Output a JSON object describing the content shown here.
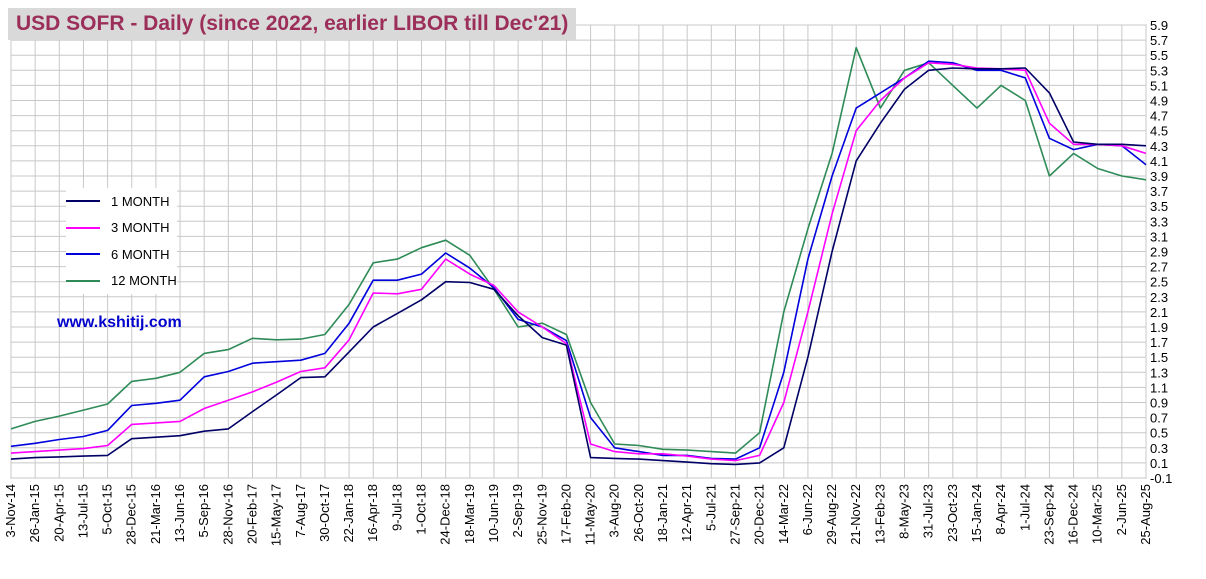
{
  "title": "USD SOFR - Daily (since 2022, earlier LIBOR till Dec'21)",
  "watermark": "www.kshitij.com",
  "chart_data": {
    "type": "line",
    "title": "USD SOFR - Daily (since 2022, earlier LIBOR till Dec'21)",
    "xlabel": "",
    "ylabel": "",
    "ylim": [
      -0.1,
      5.9
    ],
    "y_ticks": [
      5.9,
      5.7,
      5.5,
      5.3,
      5.1,
      4.9,
      4.7,
      4.5,
      4.3,
      4.1,
      3.9,
      3.7,
      3.5,
      3.3,
      3.1,
      2.9,
      2.7,
      2.5,
      2.3,
      2.1,
      1.9,
      1.7,
      1.5,
      1.3,
      1.1,
      0.9,
      0.7,
      0.5,
      0.3,
      0.1,
      -0.1
    ],
    "y_axis_position": "right",
    "grid": true,
    "legend_position": "left",
    "x_tick_labels": [
      "3-Nov-14",
      "26-Jan-15",
      "20-Apr-15",
      "13-Jul-15",
      "5-Oct-15",
      "28-Dec-15",
      "21-Mar-16",
      "13-Jun-16",
      "5-Sep-16",
      "28-Nov-16",
      "20-Feb-17",
      "15-May-17",
      "7-Aug-17",
      "30-Oct-17",
      "22-Jan-18",
      "16-Apr-18",
      "9-Jul-18",
      "1-Oct-18",
      "24-Dec-18",
      "18-Mar-19",
      "10-Jun-19",
      "2-Sep-19",
      "25-Nov-19",
      "17-Feb-20",
      "11-May-20",
      "3-Aug-20",
      "26-Oct-20",
      "18-Jan-21",
      "12-Apr-21",
      "5-Jul-21",
      "27-Sep-21",
      "20-Dec-21",
      "14-Mar-22",
      "6-Jun-22",
      "29-Aug-22",
      "21-Nov-22",
      "13-Feb-23",
      "8-May-23",
      "31-Jul-23",
      "23-Oct-23",
      "15-Jan-24",
      "8-Apr-24",
      "1-Jul-24",
      "23-Sep-24",
      "16-Dec-24",
      "10-Mar-25",
      "2-Jun-25",
      "25-Aug-25"
    ],
    "series": [
      {
        "name": "1 MONTH",
        "color": "#000066",
        "x": [
          "3-Nov-14",
          "26-Jan-15",
          "20-Apr-15",
          "13-Jul-15",
          "5-Oct-15",
          "28-Dec-15",
          "21-Mar-16",
          "13-Jun-16",
          "5-Sep-16",
          "28-Nov-16",
          "20-Feb-17",
          "15-May-17",
          "7-Aug-17",
          "30-Oct-17",
          "22-Jan-18",
          "16-Apr-18",
          "9-Jul-18",
          "1-Oct-18",
          "24-Dec-18",
          "18-Mar-19",
          "10-Jun-19",
          "2-Sep-19",
          "25-Nov-19",
          "17-Feb-20",
          "11-May-20",
          "3-Aug-20",
          "26-Oct-20",
          "18-Jan-21",
          "12-Apr-21",
          "5-Jul-21",
          "27-Sep-21",
          "20-Dec-21",
          "14-Mar-22",
          "6-Jun-22",
          "29-Aug-22",
          "21-Nov-22",
          "13-Feb-23",
          "8-May-23",
          "31-Jul-23",
          "23-Oct-23",
          "15-Jan-24",
          "8-Apr-24",
          "1-Jul-24",
          "23-Sep-24",
          "16-Dec-24",
          "10-Mar-25",
          "2-Jun-25",
          "25-Aug-25"
        ],
        "values": [
          0.15,
          0.17,
          0.18,
          0.19,
          0.2,
          0.42,
          0.44,
          0.46,
          0.52,
          0.55,
          0.78,
          1.0,
          1.23,
          1.24,
          1.57,
          1.9,
          2.08,
          2.26,
          2.5,
          2.49,
          2.4,
          2.05,
          1.76,
          1.66,
          0.17,
          0.16,
          0.15,
          0.13,
          0.11,
          0.09,
          0.08,
          0.1,
          0.3,
          1.5,
          2.9,
          4.1,
          4.6,
          5.05,
          5.3,
          5.33,
          5.32,
          5.32,
          5.33,
          5.0,
          4.35,
          4.32,
          4.32,
          4.3
        ]
      },
      {
        "name": "3 MONTH",
        "color": "#ff00ff",
        "x": [
          "3-Nov-14",
          "26-Jan-15",
          "20-Apr-15",
          "13-Jul-15",
          "5-Oct-15",
          "28-Dec-15",
          "21-Mar-16",
          "13-Jun-16",
          "5-Sep-16",
          "28-Nov-16",
          "20-Feb-17",
          "15-May-17",
          "7-Aug-17",
          "30-Oct-17",
          "22-Jan-18",
          "16-Apr-18",
          "9-Jul-18",
          "1-Oct-18",
          "24-Dec-18",
          "18-Mar-19",
          "10-Jun-19",
          "2-Sep-19",
          "25-Nov-19",
          "17-Feb-20",
          "11-May-20",
          "3-Aug-20",
          "26-Oct-20",
          "18-Jan-21",
          "12-Apr-21",
          "5-Jul-21",
          "27-Sep-21",
          "20-Dec-21",
          "14-Mar-22",
          "6-Jun-22",
          "29-Aug-22",
          "21-Nov-22",
          "13-Feb-23",
          "8-May-23",
          "31-Jul-23",
          "23-Oct-23",
          "15-Jan-24",
          "8-Apr-24",
          "1-Jul-24",
          "23-Sep-24",
          "16-Dec-24",
          "10-Mar-25",
          "2-Jun-25",
          "25-Aug-25"
        ],
        "values": [
          0.23,
          0.25,
          0.27,
          0.29,
          0.33,
          0.61,
          0.63,
          0.65,
          0.82,
          0.93,
          1.04,
          1.17,
          1.31,
          1.36,
          1.73,
          2.35,
          2.34,
          2.4,
          2.8,
          2.6,
          2.45,
          2.1,
          1.9,
          1.68,
          0.35,
          0.25,
          0.22,
          0.22,
          0.19,
          0.15,
          0.13,
          0.2,
          0.9,
          2.1,
          3.4,
          4.5,
          4.9,
          5.2,
          5.4,
          5.38,
          5.33,
          5.32,
          5.3,
          4.6,
          4.32,
          4.32,
          4.3,
          4.2
        ]
      },
      {
        "name": "6 MONTH",
        "color": "#0000dd",
        "x": [
          "3-Nov-14",
          "26-Jan-15",
          "20-Apr-15",
          "13-Jul-15",
          "5-Oct-15",
          "28-Dec-15",
          "21-Mar-16",
          "13-Jun-16",
          "5-Sep-16",
          "28-Nov-16",
          "20-Feb-17",
          "15-May-17",
          "7-Aug-17",
          "30-Oct-17",
          "22-Jan-18",
          "16-Apr-18",
          "9-Jul-18",
          "1-Oct-18",
          "24-Dec-18",
          "18-Mar-19",
          "10-Jun-19",
          "2-Sep-19",
          "25-Nov-19",
          "17-Feb-20",
          "11-May-20",
          "3-Aug-20",
          "26-Oct-20",
          "18-Jan-21",
          "12-Apr-21",
          "5-Jul-21",
          "27-Sep-21",
          "20-Dec-21",
          "14-Mar-22",
          "6-Jun-22",
          "29-Aug-22",
          "21-Nov-22",
          "13-Feb-23",
          "8-May-23",
          "31-Jul-23",
          "23-Oct-23",
          "15-Jan-24",
          "8-Apr-24",
          "1-Jul-24",
          "23-Sep-24",
          "16-Dec-24",
          "10-Mar-25",
          "2-Jun-25",
          "25-Aug-25"
        ],
        "values": [
          0.32,
          0.36,
          0.41,
          0.45,
          0.53,
          0.86,
          0.89,
          0.93,
          1.24,
          1.31,
          1.42,
          1.44,
          1.46,
          1.55,
          1.95,
          2.52,
          2.52,
          2.6,
          2.88,
          2.68,
          2.42,
          2.0,
          1.9,
          1.72,
          0.7,
          0.3,
          0.25,
          0.2,
          0.2,
          0.16,
          0.15,
          0.3,
          1.3,
          2.8,
          3.9,
          4.8,
          5.0,
          5.2,
          5.42,
          5.4,
          5.3,
          5.3,
          5.2,
          4.4,
          4.25,
          4.32,
          4.3,
          4.05
        ]
      },
      {
        "name": "12 MONTH",
        "color": "#2e8b57",
        "x": [
          "3-Nov-14",
          "26-Jan-15",
          "20-Apr-15",
          "13-Jul-15",
          "5-Oct-15",
          "28-Dec-15",
          "21-Mar-16",
          "13-Jun-16",
          "5-Sep-16",
          "28-Nov-16",
          "20-Feb-17",
          "15-May-17",
          "7-Aug-17",
          "30-Oct-17",
          "22-Jan-18",
          "16-Apr-18",
          "9-Jul-18",
          "1-Oct-18",
          "24-Dec-18",
          "18-Mar-19",
          "10-Jun-19",
          "2-Sep-19",
          "25-Nov-19",
          "17-Feb-20",
          "11-May-20",
          "3-Aug-20",
          "26-Oct-20",
          "18-Jan-21",
          "12-Apr-21",
          "5-Jul-21",
          "27-Sep-21",
          "20-Dec-21",
          "14-Mar-22",
          "6-Jun-22",
          "29-Aug-22",
          "21-Nov-22",
          "13-Feb-23",
          "8-May-23",
          "31-Jul-23",
          "23-Oct-23",
          "15-Jan-24",
          "8-Apr-24",
          "1-Jul-24",
          "23-Sep-24",
          "16-Dec-24",
          "10-Mar-25",
          "2-Jun-25",
          "25-Aug-25"
        ],
        "values": [
          0.55,
          0.65,
          0.72,
          0.8,
          0.88,
          1.18,
          1.22,
          1.3,
          1.55,
          1.6,
          1.75,
          1.73,
          1.74,
          1.8,
          2.2,
          2.75,
          2.8,
          2.95,
          3.05,
          2.85,
          2.4,
          1.9,
          1.95,
          1.8,
          0.9,
          0.35,
          0.33,
          0.28,
          0.27,
          0.25,
          0.23,
          0.5,
          2.1,
          3.2,
          4.2,
          5.6,
          4.8,
          5.3,
          5.4,
          5.1,
          4.8,
          5.1,
          4.9,
          3.9,
          4.2,
          4.0,
          3.9,
          3.85
        ]
      }
    ]
  }
}
